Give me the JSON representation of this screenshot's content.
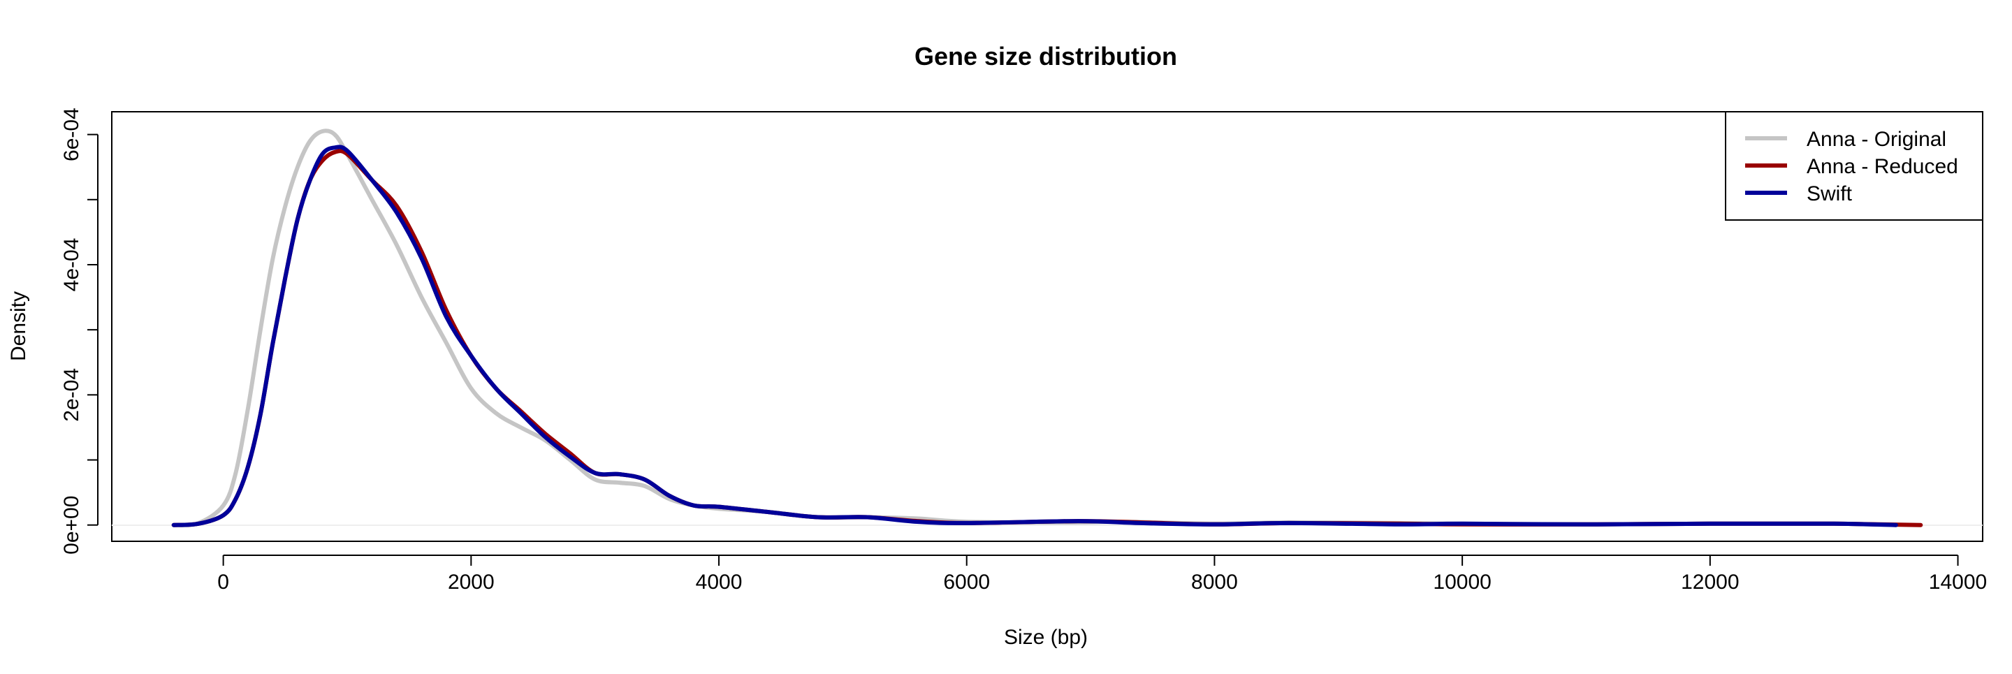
{
  "chart_data": {
    "type": "line",
    "title": "Gene size distribution",
    "xlabel": "Size (bp)",
    "ylabel": "Density",
    "xlim": [
      -900,
      14200
    ],
    "ylim": [
      -2.5e-05,
      0.000635
    ],
    "x_ticks": [
      0,
      2000,
      4000,
      6000,
      8000,
      10000,
      12000,
      14000
    ],
    "x_tick_labels": [
      "0",
      "2000",
      "4000",
      "6000",
      "8000",
      "10000",
      "12000",
      "14000"
    ],
    "y_ticks": [
      0,
      0.0001,
      0.0002,
      0.0003,
      0.0004,
      0.0005,
      0.0006
    ],
    "y_labeled_ticks": [
      0,
      0.0002,
      0.0004,
      0.0006
    ],
    "y_tick_labels": [
      "0e+00",
      "2e-04",
      "4e-04",
      "6e-04"
    ],
    "grid": false,
    "legend_position": "top-right",
    "series": [
      {
        "name": "Anna - Original",
        "color": "#c5c5c5",
        "points": [
          [
            -400,
            0
          ],
          [
            -200,
            3e-06
          ],
          [
            0,
            3e-05
          ],
          [
            100,
            8e-05
          ],
          [
            200,
            0.00018
          ],
          [
            300,
            0.0003
          ],
          [
            400,
            0.00041
          ],
          [
            500,
            0.00049
          ],
          [
            600,
            0.00055
          ],
          [
            700,
            0.00059
          ],
          [
            800,
            0.000605
          ],
          [
            900,
            0.0006
          ],
          [
            1000,
            0.00057
          ],
          [
            1200,
            0.0005
          ],
          [
            1400,
            0.00043
          ],
          [
            1600,
            0.00035
          ],
          [
            1800,
            0.00028
          ],
          [
            2000,
            0.00021
          ],
          [
            2200,
            0.000172
          ],
          [
            2400,
            0.00015
          ],
          [
            2600,
            0.00013
          ],
          [
            2800,
            0.0001
          ],
          [
            3000,
            7e-05
          ],
          [
            3200,
            6.5e-05
          ],
          [
            3400,
            6e-05
          ],
          [
            3600,
            4e-05
          ],
          [
            3800,
            3e-05
          ],
          [
            4000,
            2.5e-05
          ],
          [
            4400,
            2e-05
          ],
          [
            4800,
            1.2e-05
          ],
          [
            5200,
            1.2e-05
          ],
          [
            5600,
            1e-05
          ],
          [
            6000,
            5e-06
          ],
          [
            6800,
            4e-06
          ],
          [
            7300,
            5e-06
          ],
          [
            8000,
            2e-06
          ],
          [
            8600,
            4e-06
          ],
          [
            9500,
            3e-06
          ],
          [
            10000,
            2e-06
          ],
          [
            11000,
            1e-06
          ],
          [
            12000,
            2e-06
          ],
          [
            13000,
            2e-06
          ],
          [
            13500,
            0
          ]
        ]
      },
      {
        "name": "Anna - Reduced",
        "color": "#990000",
        "points": [
          [
            -400,
            0
          ],
          [
            -200,
            2e-06
          ],
          [
            0,
            1.5e-05
          ],
          [
            100,
            4e-05
          ],
          [
            200,
            9e-05
          ],
          [
            300,
            0.00017
          ],
          [
            400,
            0.00028
          ],
          [
            500,
            0.00038
          ],
          [
            600,
            0.00047
          ],
          [
            700,
            0.00053
          ],
          [
            800,
            0.00056
          ],
          [
            900,
            0.000573
          ],
          [
            1000,
            0.00057
          ],
          [
            1200,
            0.00053
          ],
          [
            1400,
            0.00049
          ],
          [
            1600,
            0.00042
          ],
          [
            1800,
            0.00033
          ],
          [
            2000,
            0.00026
          ],
          [
            2200,
            0.00021
          ],
          [
            2400,
            0.000175
          ],
          [
            2600,
            0.00014
          ],
          [
            2800,
            0.00011
          ],
          [
            3000,
            8e-05
          ],
          [
            3200,
            7.8e-05
          ],
          [
            3400,
            7e-05
          ],
          [
            3600,
            4.5e-05
          ],
          [
            3800,
            3e-05
          ],
          [
            4000,
            2.8e-05
          ],
          [
            4400,
            2e-05
          ],
          [
            4800,
            1.2e-05
          ],
          [
            5200,
            1.2e-05
          ],
          [
            5600,
            6e-06
          ],
          [
            6000,
            3e-06
          ],
          [
            6900,
            6e-06
          ],
          [
            7400,
            4e-06
          ],
          [
            8000,
            1e-06
          ],
          [
            8600,
            3e-06
          ],
          [
            9500,
            2e-06
          ],
          [
            10000,
            1e-06
          ],
          [
            11000,
            1e-06
          ],
          [
            12000,
            2e-06
          ],
          [
            13000,
            2e-06
          ],
          [
            13700,
            0
          ]
        ]
      },
      {
        "name": "Swift",
        "color": "#000099",
        "points": [
          [
            -400,
            0
          ],
          [
            -200,
            2e-06
          ],
          [
            0,
            1.5e-05
          ],
          [
            100,
            4e-05
          ],
          [
            200,
            9e-05
          ],
          [
            300,
            0.00017
          ],
          [
            400,
            0.00028
          ],
          [
            500,
            0.00038
          ],
          [
            600,
            0.00047
          ],
          [
            700,
            0.00053
          ],
          [
            800,
            0.00057
          ],
          [
            900,
            0.00058
          ],
          [
            1000,
            0.000575
          ],
          [
            1200,
            0.00053
          ],
          [
            1400,
            0.00048
          ],
          [
            1600,
            0.00041
          ],
          [
            1800,
            0.00032
          ],
          [
            2000,
            0.00026
          ],
          [
            2200,
            0.00021
          ],
          [
            2400,
            0.000172
          ],
          [
            2600,
            0.000135
          ],
          [
            2800,
            0.000105
          ],
          [
            3000,
            8e-05
          ],
          [
            3200,
            7.8e-05
          ],
          [
            3400,
            7e-05
          ],
          [
            3600,
            4.5e-05
          ],
          [
            3800,
            3e-05
          ],
          [
            4000,
            2.8e-05
          ],
          [
            4400,
            2e-05
          ],
          [
            4800,
            1.2e-05
          ],
          [
            5200,
            1.2e-05
          ],
          [
            5600,
            5e-06
          ],
          [
            6000,
            3e-06
          ],
          [
            6900,
            6e-06
          ],
          [
            7400,
            3e-06
          ],
          [
            8000,
            1e-06
          ],
          [
            8600,
            3e-06
          ],
          [
            9500,
            1e-06
          ],
          [
            10000,
            2e-06
          ],
          [
            11000,
            1e-06
          ],
          [
            12000,
            2e-06
          ],
          [
            13000,
            2e-06
          ],
          [
            13500,
            0
          ]
        ]
      }
    ]
  }
}
